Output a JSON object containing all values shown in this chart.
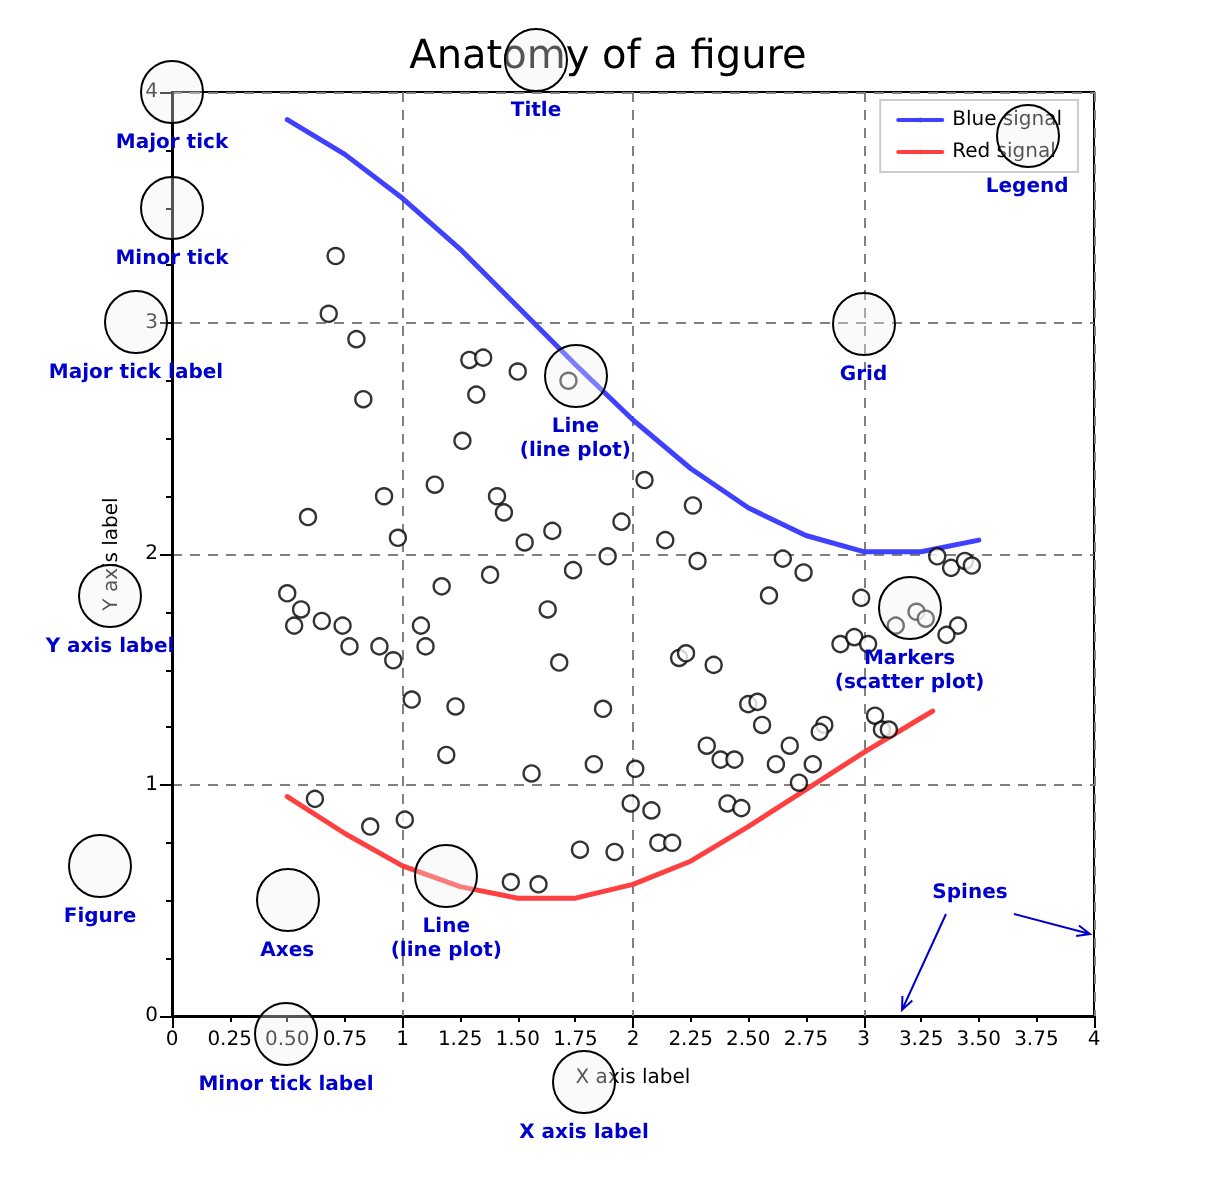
{
  "chart_data": {
    "type": "line",
    "title": "Anatomy of a figure",
    "xlabel": "X axis label",
    "ylabel": "Y axis label",
    "xlim": [
      0,
      4
    ],
    "ylim": [
      0,
      4
    ],
    "xticks": [
      0,
      0.25,
      {
        "value": 0.5,
        "label": "0.50"
      },
      0.75,
      1,
      1.25,
      {
        "value": 1.5,
        "label": "1.50"
      },
      1.75,
      2,
      2.25,
      {
        "value": 2.5,
        "label": "2.50"
      },
      2.75,
      3,
      3.25,
      {
        "value": 3.5,
        "label": "3.50"
      },
      3.75,
      4
    ],
    "yticks": [
      0,
      {
        "value": 0.25,
        "label": null
      },
      {
        "value": 0.5,
        "label": null
      },
      {
        "value": 0.75,
        "label": null
      },
      1,
      {
        "value": 1.25,
        "label": null
      },
      {
        "value": 1.5,
        "label": null
      },
      {
        "value": 1.75,
        "label": null
      },
      2,
      {
        "value": 2.25,
        "label": null
      },
      {
        "value": 2.5,
        "label": null
      },
      {
        "value": 2.75,
        "label": null
      },
      3,
      {
        "value": 3.25,
        "label": null
      },
      {
        "value": 3.5,
        "label": null
      },
      {
        "value": 3.75,
        "label": null
      },
      4
    ],
    "grid": true,
    "legend": "top right",
    "series": [
      {
        "name": "Blue signal",
        "color": "#4040ff",
        "x": [
          0.5,
          0.75,
          1,
          1.25,
          1.5,
          1.75,
          2,
          2.25,
          2.5,
          2.75,
          3,
          3.25,
          3.5
        ],
        "values": [
          3.88,
          3.73,
          3.54,
          3.32,
          3.07,
          2.82,
          2.58,
          2.37,
          2.2,
          2.08,
          2.01,
          2.01,
          2.06
        ]
      },
      {
        "name": "Red signal",
        "color": "#ff4040",
        "x": [
          0.5,
          0.75,
          1,
          1.25,
          1.5,
          1.75,
          2,
          2.25,
          2.5,
          2.75,
          3,
          3.25,
          3.3
        ],
        "values": [
          0.95,
          0.79,
          0.65,
          0.56,
          0.51,
          0.51,
          0.57,
          0.67,
          0.82,
          0.98,
          1.14,
          1.29,
          1.32
        ]
      },
      {
        "type": "scatter",
        "marker": "circle",
        "color": "#000000",
        "x": [
          0.71,
          0.68,
          0.8,
          0.83,
          1.29,
          1.35,
          1.5,
          1.72,
          1.32,
          1.26,
          0.92,
          1.14,
          1.41,
          1.44,
          0.59,
          0.98,
          1.53,
          1.65,
          1.95,
          1.89,
          2.05,
          2.26,
          2.14,
          2.28,
          2.65,
          3.32,
          3.38,
          3.44,
          3.47,
          1.74,
          1.38,
          1.17,
          1.63,
          0.5,
          0.56,
          0.53,
          0.65,
          0.74,
          0.77,
          0.9,
          0.96,
          1.08,
          1.1,
          1.68,
          1.04,
          1.23,
          1.87,
          1.19,
          1.56,
          1.83,
          2.01,
          1.99,
          0.62,
          0.86,
          1.01,
          1.77,
          1.92,
          1.47,
          1.59,
          2.11,
          2.17,
          2.08,
          2.74,
          2.59,
          2.99,
          3.14,
          3.23,
          3.27,
          3.41,
          3.36,
          2.9,
          2.96,
          3.02,
          2.2,
          2.23,
          2.35,
          2.5,
          2.54,
          2.56,
          2.83,
          2.81,
          3.05,
          3.08,
          3.11,
          2.32,
          2.38,
          2.44,
          2.68,
          2.62,
          2.78,
          2.72,
          2.41,
          2.47
        ],
        "values": [
          3.29,
          3.04,
          2.93,
          2.67,
          2.84,
          2.85,
          2.79,
          2.75,
          2.69,
          2.49,
          2.25,
          2.3,
          2.25,
          2.18,
          2.16,
          2.07,
          2.05,
          2.1,
          2.14,
          1.99,
          2.32,
          2.21,
          2.06,
          1.97,
          1.98,
          1.99,
          1.94,
          1.97,
          1.95,
          1.93,
          1.91,
          1.86,
          1.76,
          1.83,
          1.76,
          1.69,
          1.71,
          1.69,
          1.6,
          1.6,
          1.54,
          1.69,
          1.6,
          1.53,
          1.37,
          1.34,
          1.33,
          1.13,
          1.05,
          1.09,
          1.07,
          0.92,
          0.94,
          0.82,
          0.85,
          0.72,
          0.71,
          0.58,
          0.57,
          0.75,
          0.75,
          0.89,
          1.92,
          1.82,
          1.81,
          1.69,
          1.75,
          1.72,
          1.69,
          1.65,
          1.61,
          1.64,
          1.61,
          1.55,
          1.57,
          1.52,
          1.35,
          1.36,
          1.26,
          1.26,
          1.23,
          1.3,
          1.24,
          1.24,
          1.17,
          1.11,
          1.11,
          1.17,
          1.09,
          1.09,
          1.01,
          0.92,
          0.9
        ]
      }
    ],
    "annotations": [
      {
        "text": "Major tick",
        "x": 0,
        "y": 4
      },
      {
        "text": "Minor tick",
        "x": 0,
        "y": 3.5
      },
      {
        "text": "Axes",
        "x": 0.5,
        "y": 0.5
      },
      {
        "text": "Line\n(line plot)",
        "x": 1.19,
        "y": 0.61
      },
      {
        "text": "Line\n(line plot)",
        "x": 1.75,
        "y": 2.77
      },
      {
        "text": "Grid",
        "x": 3,
        "y": 3
      },
      {
        "text": "Legend",
        "x": 3.71,
        "y": 3.81
      },
      {
        "text": "Markers\n(scatter plot)",
        "x": 3.2,
        "y": 1.77
      },
      "Title",
      "Major tick label",
      "Y axis label",
      "Figure",
      "Minor tick label",
      "X axis label",
      "Spines"
    ]
  }
}
